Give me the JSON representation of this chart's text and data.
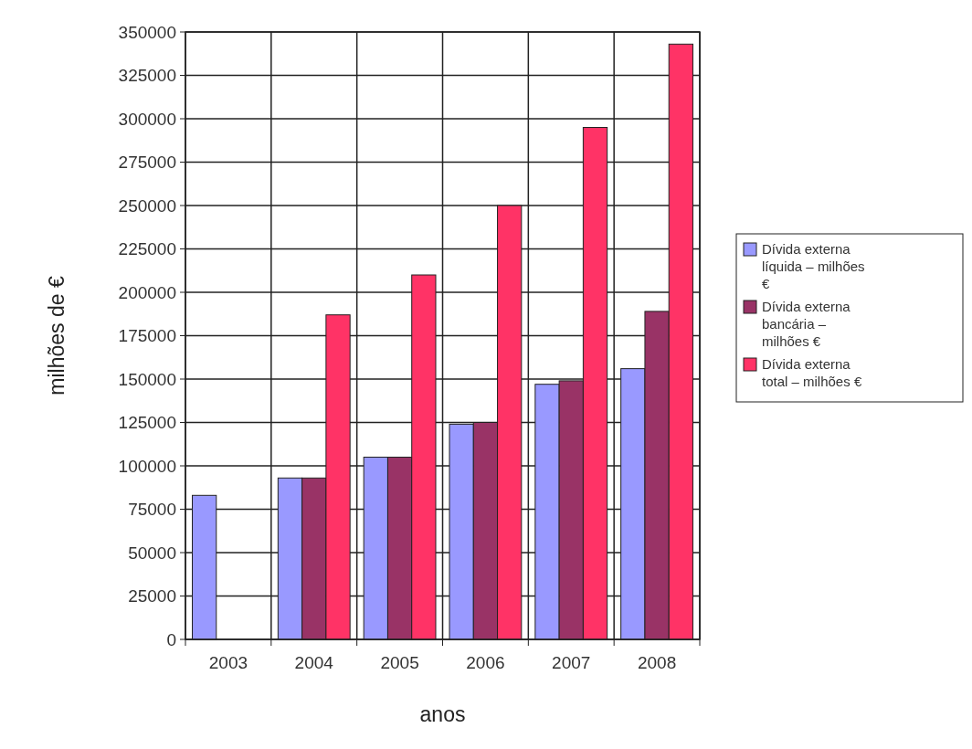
{
  "chart_data": {
    "type": "bar",
    "xlabel": "anos",
    "ylabel": "milhões de €",
    "categories": [
      "2003",
      "2004",
      "2005",
      "2006",
      "2007",
      "2008"
    ],
    "series": [
      {
        "name": "Dívida externa líquida – milhões €",
        "color": "#9999ff",
        "values": [
          83000,
          93000,
          105000,
          124000,
          147000,
          156000
        ]
      },
      {
        "name": "Dívida externa bancária – milhões €",
        "color": "#993366",
        "values": [
          null,
          93000,
          105000,
          125000,
          149000,
          189000
        ]
      },
      {
        "name": "Dívida externa total – milhões €",
        "color": "#ff3366",
        "values": [
          null,
          187000,
          210000,
          250000,
          295000,
          343000
        ]
      }
    ],
    "ylim": [
      0,
      350000
    ],
    "yticks": [
      0,
      25000,
      50000,
      75000,
      100000,
      125000,
      150000,
      175000,
      200000,
      225000,
      250000,
      275000,
      300000,
      325000,
      350000
    ],
    "grid": true,
    "legend": "right"
  }
}
